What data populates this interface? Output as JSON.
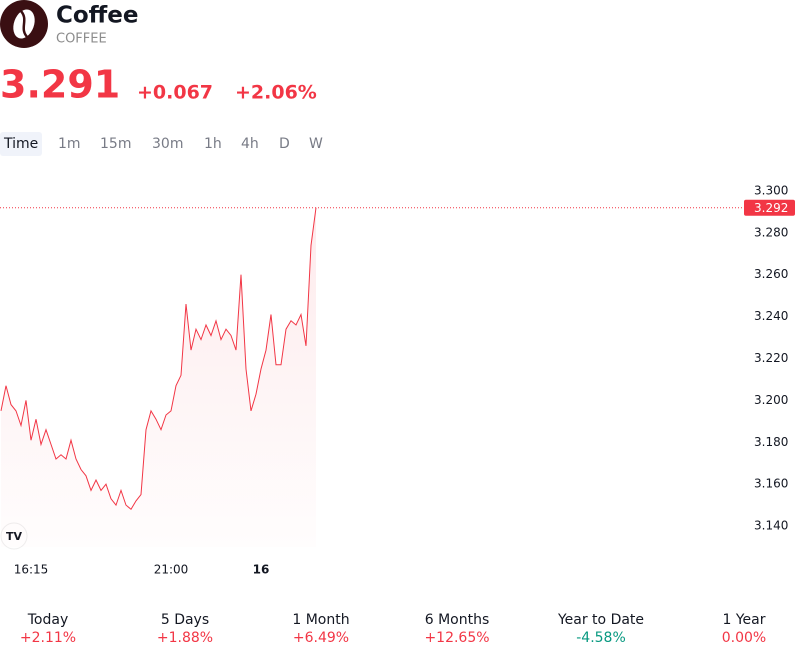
{
  "header": {
    "name": "Coffee",
    "symbol": "COFFEE",
    "price": "3.291",
    "change": "+0.067",
    "change_percent": "+2.06%"
  },
  "tabs": [
    "Time",
    "1m",
    "15m",
    "30m",
    "1h",
    "4h",
    "D",
    "W"
  ],
  "performance": [
    {
      "label": "Today",
      "value": "+2.11%",
      "color": "#f23645"
    },
    {
      "label": "5 Days",
      "value": "+1.88%",
      "color": "#f23645"
    },
    {
      "label": "1 Month",
      "value": "+6.49%",
      "color": "#f23645"
    },
    {
      "label": "6 Months",
      "value": "+12.65%",
      "color": "#f23645"
    },
    {
      "label": "Year to Date",
      "value": "-4.58%",
      "color": "#089981"
    },
    {
      "label": "1 Year",
      "value": "0.00%",
      "color": "#f23645"
    }
  ],
  "chart_data": {
    "type": "line",
    "grid": false,
    "series": [
      {
        "name": "Coffee",
        "color": "#f23645",
        "values": [
          3.195,
          3.207,
          3.198,
          3.195,
          3.188,
          3.2,
          3.181,
          3.191,
          3.179,
          3.186,
          3.179,
          3.172,
          3.174,
          3.172,
          3.181,
          3.172,
          3.167,
          3.164,
          3.157,
          3.162,
          3.157,
          3.16,
          3.153,
          3.15,
          3.157,
          3.15,
          3.148,
          3.152,
          3.155,
          3.186,
          3.195,
          3.191,
          3.186,
          3.193,
          3.195,
          3.207,
          3.212,
          3.246,
          3.224,
          3.234,
          3.229,
          3.236,
          3.231,
          3.238,
          3.229,
          3.234,
          3.231,
          3.224,
          3.26,
          3.215,
          3.195,
          3.203,
          3.215,
          3.224,
          3.241,
          3.217,
          3.217,
          3.234,
          3.238,
          3.236,
          3.241,
          3.226,
          3.274,
          3.292
        ]
      }
    ],
    "xlim": [
      -0.2,
      159.8
    ],
    "xticks": [
      {
        "value": 6,
        "label": "16:15"
      },
      {
        "value": 34,
        "label": "21:00"
      },
      {
        "value": 52,
        "label": "16"
      }
    ],
    "ylim": [
      3.13,
      3.31
    ],
    "yticks": [
      {
        "value": 3.14,
        "label": "3.140"
      },
      {
        "value": 3.16,
        "label": "3.160"
      },
      {
        "value": 3.18,
        "label": "3.180"
      },
      {
        "value": 3.2,
        "label": "3.200"
      },
      {
        "value": 3.22,
        "label": "3.220"
      },
      {
        "value": 3.24,
        "label": "3.240"
      },
      {
        "value": 3.26,
        "label": "3.260"
      },
      {
        "value": 3.28,
        "label": "3.280"
      },
      {
        "value": 3.3,
        "label": "3.300"
      }
    ]
  }
}
